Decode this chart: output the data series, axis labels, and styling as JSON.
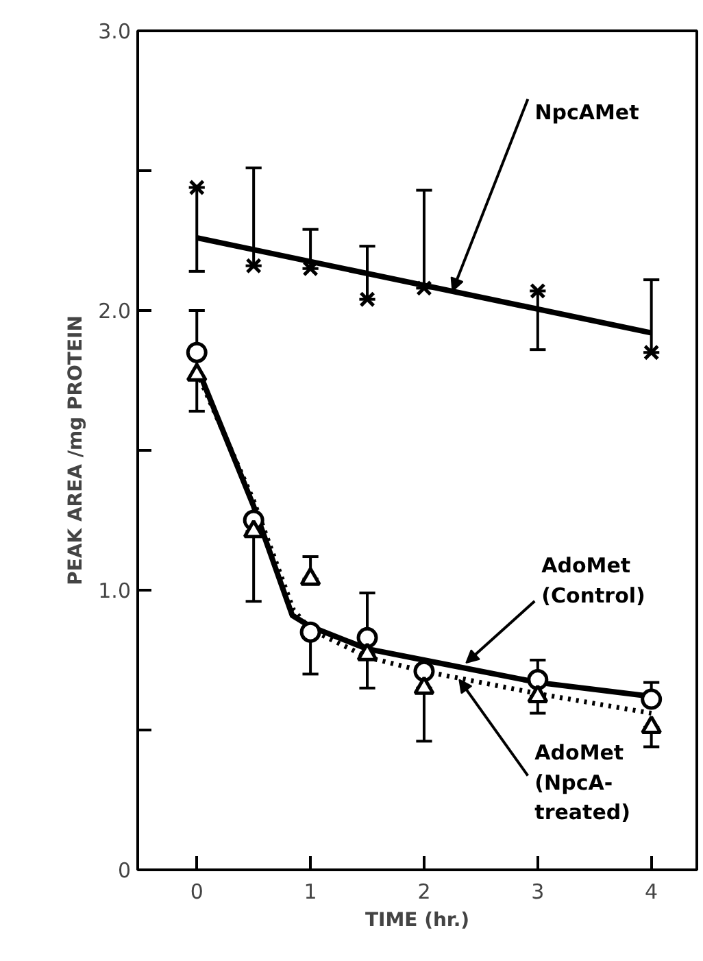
{
  "chart_data": {
    "type": "scatter",
    "xlabel": "TIME (hr.)",
    "ylabel": "PEAK AREA /mg PROTEIN",
    "xlim": [
      -0.52,
      4.4
    ],
    "ylim": [
      0,
      3.0
    ],
    "xticks": [
      0,
      1,
      2,
      3,
      4
    ],
    "yticks": [
      {
        "value": 0,
        "label": "0"
      },
      {
        "value": 0.5,
        "label": null
      },
      {
        "value": 1.0,
        "label": "1.0"
      },
      {
        "value": 1.5,
        "label": null
      },
      {
        "value": 2.0,
        "label": "2.0"
      },
      {
        "value": 2.5,
        "label": null
      },
      {
        "value": 3.0,
        "label": "3.0"
      }
    ],
    "series": [
      {
        "marker": "cross",
        "color": "#000000",
        "x": [
          0,
          0.5,
          1,
          1.5,
          2,
          3,
          4
        ],
        "values": [
          2.44,
          2.16,
          2.15,
          2.04,
          2.08,
          2.07,
          1.85
        ],
        "errors": [
          [
            2.14,
            2.44
          ],
          [
            2.16,
            2.51
          ],
          [
            2.15,
            2.29
          ],
          [
            2.04,
            2.23
          ],
          [
            2.08,
            2.43
          ],
          [
            1.86,
            2.07
          ],
          [
            1.85,
            2.11
          ]
        ]
      },
      {
        "type": "line",
        "line_style": "solid",
        "color": "#000000",
        "x": [
          0,
          4
        ],
        "values": [
          2.26,
          1.92
        ]
      },
      {
        "marker": "circle",
        "color": "#000000",
        "x": [
          0,
          0.5,
          1,
          1.5,
          2,
          3,
          4
        ],
        "values": [
          1.85,
          1.25,
          0.85,
          0.83,
          0.71,
          0.68,
          0.61
        ],
        "errors": [
          [
            1.64,
            2.0
          ],
          null,
          [
            0.7,
            0.85
          ],
          [
            0.83,
            0.99
          ],
          null,
          [
            0.68,
            0.75
          ],
          [
            0.61,
            0.67
          ]
        ]
      },
      {
        "type": "line",
        "line_style": "solid",
        "color": "#000000",
        "x": [
          0,
          0.5,
          0.84,
          1,
          1.5,
          2,
          3,
          4
        ],
        "values": [
          1.8,
          1.3,
          0.91,
          0.87,
          0.79,
          0.75,
          0.67,
          0.62
        ]
      },
      {
        "marker": "triangle",
        "color": "#000000",
        "x": [
          0,
          0.5,
          1,
          1.5,
          2,
          3,
          4
        ],
        "values": [
          1.77,
          1.21,
          1.04,
          0.77,
          0.65,
          0.62,
          0.51
        ],
        "errors": [
          null,
          [
            0.96,
            1.21
          ],
          [
            1.04,
            1.12
          ],
          [
            0.65,
            0.77
          ],
          [
            0.46,
            0.65
          ],
          [
            0.56,
            0.62
          ],
          [
            0.44,
            0.51
          ]
        ]
      },
      {
        "type": "line",
        "line_style": "dotted",
        "color": "#000000",
        "x": [
          0,
          0.5,
          0.85,
          1,
          1.5,
          2,
          3,
          4
        ],
        "values": [
          1.78,
          1.32,
          0.93,
          0.86,
          0.76,
          0.71,
          0.63,
          0.56
        ]
      }
    ],
    "annotations": [
      {
        "text": "NpcAMet",
        "x": 2.25,
        "y": 2.07
      },
      {
        "text": "AdoMet (Control)",
        "x": 2.37,
        "y": 0.74
      },
      {
        "text": "AdoMet (NpcA-treated)",
        "x": 2.31,
        "y": 0.68
      }
    ]
  }
}
